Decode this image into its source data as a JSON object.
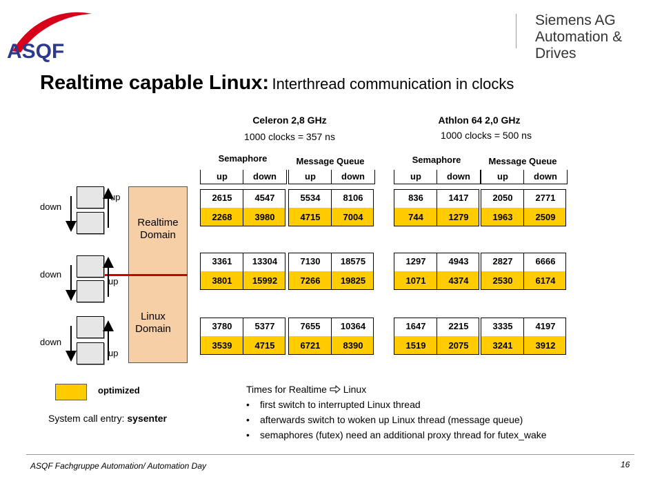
{
  "header": {
    "logo_text": "ASQF",
    "company_line1": "Siemens AG",
    "company_line2": "Automation & Drives"
  },
  "title": {
    "main": "Realtime capable Linux:",
    "sub": "Interthread communication in clocks"
  },
  "cpus": [
    {
      "name": "Celeron 2,8 GHz",
      "clocks": "1000 clocks = 357 ns"
    },
    {
      "name": "Athlon 64 2,0 GHz",
      "clocks": "1000 clocks = 500 ns"
    }
  ],
  "group_labels": [
    "Semaphore",
    "Message Queue",
    "Semaphore",
    "Message Queue"
  ],
  "col_up": "up",
  "col_down": "down",
  "cells": [
    [
      [
        "2615",
        "4547",
        "2268",
        "3980"
      ],
      [
        "5534",
        "8106",
        "4715",
        "7004"
      ],
      [
        "836",
        "1417",
        "744",
        "1279"
      ],
      [
        "2050",
        "2771",
        "1963",
        "2509"
      ]
    ],
    [
      [
        "3361",
        "13304",
        "3801",
        "15992"
      ],
      [
        "7130",
        "18575",
        "7266",
        "19825"
      ],
      [
        "1297",
        "4943",
        "1071",
        "4374"
      ],
      [
        "2827",
        "6666",
        "2530",
        "6174"
      ]
    ],
    [
      [
        "3780",
        "5377",
        "3539",
        "4715"
      ],
      [
        "7655",
        "10364",
        "6721",
        "8390"
      ],
      [
        "1647",
        "2215",
        "1519",
        "2075"
      ],
      [
        "3335",
        "4197",
        "3241",
        "3912"
      ]
    ]
  ],
  "diagram": {
    "down_labels": [
      "down",
      "down",
      "down"
    ],
    "up_labels": [
      "up",
      "up",
      "up"
    ],
    "realtime_domain": [
      "Realtime",
      "Domain"
    ],
    "linux_domain": [
      "Linux",
      "Domain"
    ]
  },
  "legend": {
    "optimized": "optimized",
    "syscall_prefix": "System call entry: ",
    "syscall_value": "sysenter"
  },
  "notes": {
    "heading_prefix": "Times for  Realtime",
    "heading_suffix": "Linux",
    "bullets": [
      "first switch to interrupted Linux thread",
      "afterwards switch to woken up Linux thread (message queue)",
      "semaphores (futex) need an additional proxy thread for futex_wake"
    ]
  },
  "footer": {
    "left": "ASQF Fachgruppe Automation/ Automation Day",
    "page": "16"
  },
  "colors": {
    "optimized_fill": "#ffcc00",
    "domain_fill": "#f7cfa6",
    "divider_line": "#cc0000",
    "logo_blue": "#2d3a8c",
    "logo_red": "#d7001b"
  }
}
